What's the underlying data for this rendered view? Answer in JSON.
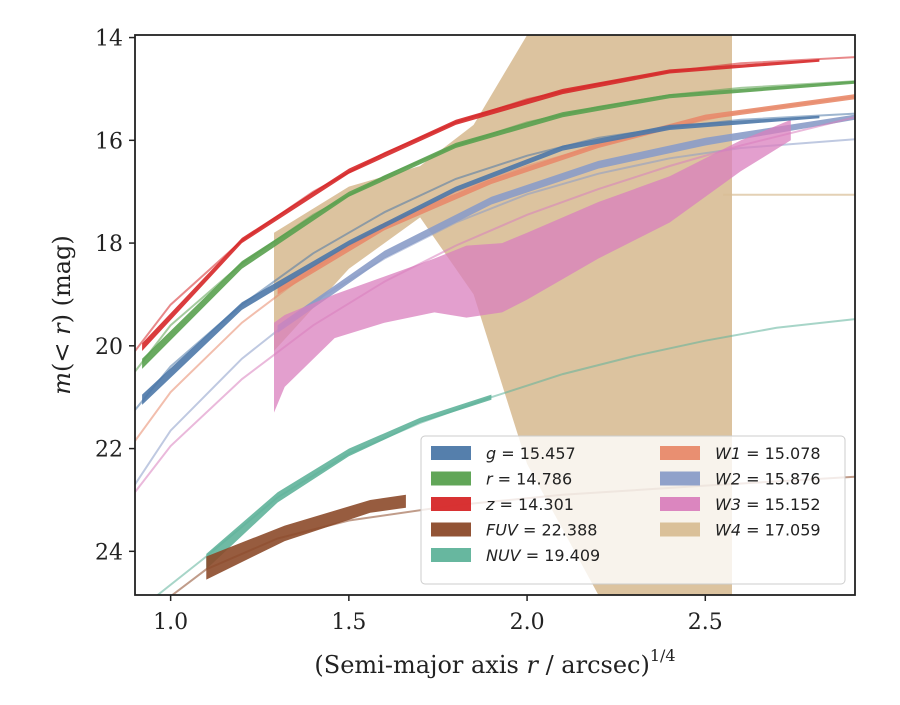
{
  "chart_data": {
    "type": "line",
    "xlabel": "(Semi-major axis r / arcsec)^1/4",
    "ylabel": "m(< r) (mag)",
    "xlim": [
      0.9,
      2.92
    ],
    "ylim": [
      24.85,
      13.95
    ],
    "y_inverted": true,
    "x_ticks": [
      1.0,
      1.5,
      2.0,
      2.5
    ],
    "x_tick_labels": [
      "1.0",
      "1.5",
      "2.0",
      "2.5"
    ],
    "y_ticks": [
      14,
      16,
      18,
      20,
      22,
      24
    ],
    "y_tick_labels": [
      "14",
      "16",
      "18",
      "20",
      "22",
      "24"
    ],
    "grid": false,
    "legend_placement": "lower-right",
    "series": [
      {
        "name": "g = 15.457",
        "symbol": "g",
        "value": "15.457",
        "color": "#4c78a8",
        "model_curve": [
          [
            0.9,
            21.25
          ],
          [
            1.0,
            20.4
          ],
          [
            1.2,
            19.2
          ],
          [
            1.4,
            18.2
          ],
          [
            1.6,
            17.4
          ],
          [
            1.8,
            16.75
          ],
          [
            2.0,
            16.3
          ],
          [
            2.2,
            15.95
          ],
          [
            2.4,
            15.75
          ],
          [
            2.6,
            15.6
          ],
          [
            2.92,
            15.48
          ]
        ],
        "band_x": [
          0.92,
          1.2,
          1.5,
          1.8,
          2.1,
          2.4,
          2.82
        ],
        "band_upper": [
          20.95,
          19.15,
          17.95,
          16.9,
          16.1,
          15.7,
          15.52
        ],
        "band_lower": [
          21.15,
          19.3,
          18.05,
          17.0,
          16.2,
          15.8,
          15.57
        ]
      },
      {
        "name": "r = 14.786",
        "symbol": "r",
        "value": "14.786",
        "color": "#59a14f",
        "model_curve": [
          [
            0.9,
            20.5
          ],
          [
            1.0,
            19.6
          ],
          [
            1.2,
            18.4
          ],
          [
            1.4,
            17.45
          ],
          [
            1.6,
            16.7
          ],
          [
            1.8,
            16.1
          ],
          [
            2.0,
            15.65
          ],
          [
            2.2,
            15.35
          ],
          [
            2.4,
            15.12
          ],
          [
            2.6,
            14.98
          ],
          [
            2.92,
            14.85
          ]
        ],
        "band_x": [
          0.92,
          1.2,
          1.5,
          1.8,
          2.1,
          2.4,
          2.92
        ],
        "band_upper": [
          20.25,
          18.35,
          17.0,
          16.05,
          15.45,
          15.1,
          14.84
        ],
        "band_lower": [
          20.45,
          18.5,
          17.1,
          16.15,
          15.55,
          15.18,
          14.9
        ]
      },
      {
        "name": "z = 14.301",
        "symbol": "z",
        "value": "14.301",
        "color": "#d62728",
        "model_curve": [
          [
            0.9,
            20.1
          ],
          [
            1.0,
            19.2
          ],
          [
            1.2,
            17.95
          ],
          [
            1.4,
            17.0
          ],
          [
            1.6,
            16.25
          ],
          [
            1.8,
            15.65
          ],
          [
            2.0,
            15.2
          ],
          [
            2.2,
            14.9
          ],
          [
            2.4,
            14.66
          ],
          [
            2.6,
            14.5
          ],
          [
            2.92,
            14.38
          ]
        ],
        "band_x": [
          0.92,
          1.2,
          1.5,
          1.8,
          2.1,
          2.4,
          2.82
        ],
        "band_upper": [
          19.95,
          17.9,
          16.55,
          15.6,
          15.0,
          14.62,
          14.42
        ],
        "band_lower": [
          20.1,
          18.0,
          16.65,
          15.7,
          15.1,
          14.7,
          14.47
        ]
      },
      {
        "name": "FUV = 22.388",
        "symbol": "FUV",
        "value": "22.388",
        "color": "#8c4a2a",
        "model_curve": [
          [
            0.9,
            25.4
          ],
          [
            1.1,
            24.35
          ],
          [
            1.3,
            23.75
          ],
          [
            1.5,
            23.4
          ],
          [
            1.8,
            23.1
          ],
          [
            2.1,
            22.9
          ],
          [
            2.5,
            22.72
          ],
          [
            2.92,
            22.55
          ]
        ],
        "band_x": [
          1.1,
          1.32,
          1.56,
          1.66
        ],
        "band_upper": [
          24.1,
          23.5,
          23.0,
          22.9
        ],
        "band_lower": [
          24.55,
          23.8,
          23.25,
          23.15
        ]
      },
      {
        "name": "NUV = 19.409",
        "symbol": "NUV",
        "value": "19.409",
        "color": "#5fb39a",
        "model_curve": [
          [
            0.9,
            25.2
          ],
          [
            1.1,
            24.1
          ],
          [
            1.3,
            22.95
          ],
          [
            1.5,
            22.1
          ],
          [
            1.7,
            21.5
          ],
          [
            1.9,
            21.0
          ],
          [
            2.1,
            20.55
          ],
          [
            2.3,
            20.2
          ],
          [
            2.5,
            19.9
          ],
          [
            2.7,
            19.65
          ],
          [
            2.92,
            19.48
          ]
        ],
        "band_x": [
          1.1,
          1.3,
          1.5,
          1.7,
          1.9
        ],
        "band_upper": [
          24.05,
          22.85,
          22.0,
          21.4,
          20.95
        ],
        "band_lower": [
          24.35,
          23.05,
          22.15,
          21.5,
          21.05
        ]
      },
      {
        "name": "W1 = 15.078",
        "symbol": "W1",
        "value": "15.078",
        "color": "#e8896a",
        "model_curve": [
          [
            0.9,
            21.85
          ],
          [
            1.0,
            20.9
          ],
          [
            1.2,
            19.55
          ],
          [
            1.4,
            18.5
          ],
          [
            1.6,
            17.65
          ],
          [
            1.8,
            17.0
          ],
          [
            2.0,
            16.5
          ],
          [
            2.2,
            16.1
          ],
          [
            2.4,
            15.75
          ],
          [
            2.6,
            15.45
          ],
          [
            2.92,
            15.15
          ]
        ],
        "band_x": [
          1.3,
          1.6,
          1.9,
          2.2,
          2.5,
          2.92
        ],
        "band_upper": [
          18.85,
          17.6,
          16.75,
          16.05,
          15.5,
          15.1
        ],
        "band_lower": [
          19.0,
          17.75,
          16.85,
          16.15,
          15.6,
          15.2
        ]
      },
      {
        "name": "W2 = 15.876",
        "symbol": "W2",
        "value": "15.876",
        "color": "#8a9cc8",
        "model_curve": [
          [
            0.9,
            22.7
          ],
          [
            1.0,
            21.65
          ],
          [
            1.2,
            20.25
          ],
          [
            1.4,
            19.15
          ],
          [
            1.6,
            18.3
          ],
          [
            1.8,
            17.6
          ],
          [
            2.0,
            17.05
          ],
          [
            2.2,
            16.65
          ],
          [
            2.4,
            16.35
          ],
          [
            2.6,
            16.15
          ],
          [
            2.92,
            15.98
          ]
        ],
        "band_x": [
          1.3,
          1.6,
          1.9,
          2.2,
          2.5,
          2.92
        ],
        "band_upper": [
          19.6,
          18.15,
          17.1,
          16.4,
          15.95,
          15.5
        ],
        "band_lower": [
          19.75,
          18.3,
          17.25,
          16.55,
          16.1,
          15.6
        ]
      },
      {
        "name": "W3 = 15.152",
        "symbol": "W3",
        "value": "15.152",
        "color": "#d97fbd",
        "model_curve": [
          [
            0.9,
            22.85
          ],
          [
            1.0,
            21.95
          ],
          [
            1.2,
            20.65
          ],
          [
            1.4,
            19.6
          ],
          [
            1.6,
            18.75
          ],
          [
            1.8,
            18.05
          ],
          [
            2.0,
            17.45
          ],
          [
            2.2,
            16.95
          ],
          [
            2.4,
            16.5
          ],
          [
            2.6,
            16.1
          ],
          [
            2.92,
            15.55
          ]
        ],
        "band_x": [
          1.29,
          1.32,
          1.46,
          1.6,
          1.74,
          1.83,
          1.93,
          2.0,
          2.2,
          2.4,
          2.6,
          2.74
        ],
        "band_upper": [
          19.55,
          19.4,
          19.0,
          18.65,
          18.3,
          18.05,
          18.0,
          17.8,
          17.2,
          16.7,
          16.0,
          15.6
        ],
        "band_lower": [
          21.3,
          20.8,
          19.85,
          19.55,
          19.35,
          19.45,
          19.35,
          19.1,
          18.3,
          17.6,
          16.6,
          16.0
        ]
      },
      {
        "name": "W4 = 17.059",
        "symbol": "W4",
        "value": "17.059",
        "color": "#d8bd95",
        "model_curve": [
          [
            2.55,
            17.06
          ],
          [
            2.92,
            17.06
          ]
        ],
        "band_x": [
          1.29,
          1.5,
          1.7,
          1.85,
          2.0,
          2.2,
          2.35,
          2.5,
          2.575
        ],
        "band_upper": [
          17.8,
          16.9,
          16.5,
          15.7,
          13.95,
          13.95,
          13.95,
          13.95,
          13.95
        ],
        "band_lower": [
          20.1,
          18.5,
          17.5,
          17.3,
          17.2,
          17.6,
          17.0,
          16.6,
          16.4
        ],
        "band_far_lower": [
          20.1,
          18.5,
          17.5,
          19.0,
          22.3,
          24.85,
          24.85,
          24.85,
          24.85
        ]
      }
    ]
  }
}
